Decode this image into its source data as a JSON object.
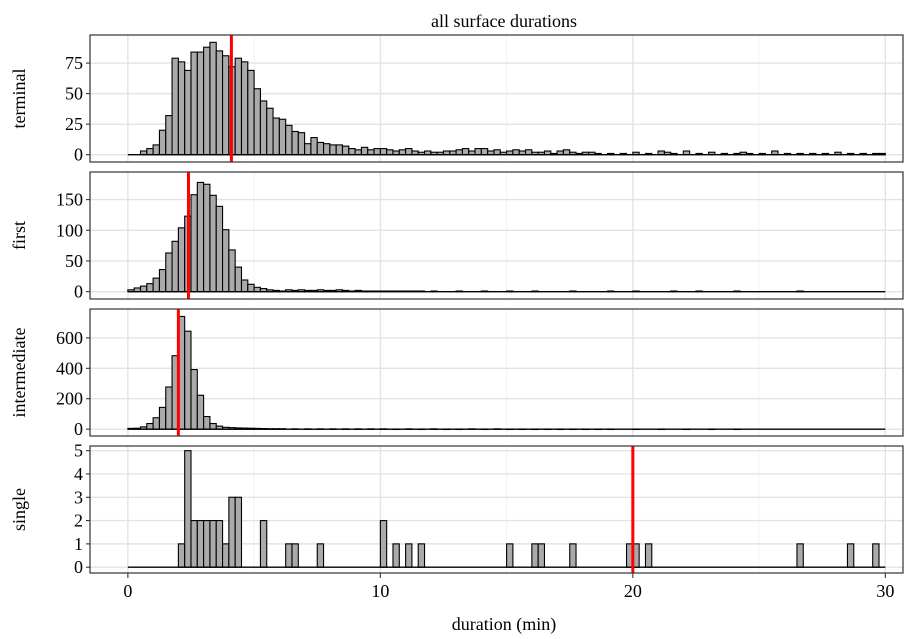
{
  "chart_data": {
    "type": "bar",
    "title": "all surface durations",
    "xlabel": "duration (min)",
    "xlim": [
      -1.5,
      30.7
    ],
    "x_ticks": [
      0,
      10,
      20,
      30
    ],
    "bin_width": 0.25,
    "grid": true,
    "marker_color": "#ff0000",
    "bar_fill": "#aaaaaa",
    "panels": [
      {
        "name": "terminal",
        "ylim": [
          -6,
          98
        ],
        "y_ticks": [
          0,
          25,
          50,
          75
        ],
        "marker": 4.1,
        "bins": [
          [
            0.5,
            3
          ],
          [
            0.75,
            5
          ],
          [
            1.0,
            8
          ],
          [
            1.25,
            20
          ],
          [
            1.5,
            32
          ],
          [
            1.75,
            79
          ],
          [
            2.0,
            76
          ],
          [
            2.25,
            69
          ],
          [
            2.5,
            84
          ],
          [
            2.75,
            84
          ],
          [
            3.0,
            88
          ],
          [
            3.25,
            92
          ],
          [
            3.5,
            85
          ],
          [
            3.75,
            81
          ],
          [
            4.0,
            72
          ],
          [
            4.25,
            79
          ],
          [
            4.5,
            76
          ],
          [
            4.75,
            69
          ],
          [
            5.0,
            54
          ],
          [
            5.25,
            44
          ],
          [
            5.5,
            38
          ],
          [
            5.75,
            30
          ],
          [
            6.0,
            29
          ],
          [
            6.25,
            24
          ],
          [
            6.5,
            19
          ],
          [
            6.75,
            18
          ],
          [
            7.0,
            9
          ],
          [
            7.25,
            14
          ],
          [
            7.5,
            10
          ],
          [
            7.75,
            9
          ],
          [
            8.0,
            8
          ],
          [
            8.25,
            8
          ],
          [
            8.5,
            7
          ],
          [
            8.75,
            5
          ],
          [
            9.0,
            4
          ],
          [
            9.25,
            6
          ],
          [
            9.5,
            4
          ],
          [
            9.75,
            5
          ],
          [
            10.0,
            5
          ],
          [
            10.25,
            4
          ],
          [
            10.5,
            3
          ],
          [
            10.75,
            4
          ],
          [
            11.0,
            5
          ],
          [
            11.25,
            3
          ],
          [
            11.5,
            2
          ],
          [
            11.75,
            3
          ],
          [
            12.0,
            2
          ],
          [
            12.25,
            2
          ],
          [
            12.5,
            3
          ],
          [
            12.75,
            3
          ],
          [
            13.0,
            4
          ],
          [
            13.25,
            5
          ],
          [
            13.5,
            3
          ],
          [
            13.75,
            5
          ],
          [
            14.0,
            5
          ],
          [
            14.25,
            3
          ],
          [
            14.5,
            4
          ],
          [
            14.75,
            2
          ],
          [
            15.0,
            3
          ],
          [
            15.25,
            4
          ],
          [
            15.5,
            3
          ],
          [
            15.75,
            4
          ],
          [
            16.0,
            2
          ],
          [
            16.25,
            2
          ],
          [
            16.5,
            3
          ],
          [
            16.75,
            1
          ],
          [
            17.0,
            3
          ],
          [
            17.25,
            4
          ],
          [
            17.5,
            2
          ],
          [
            17.75,
            1
          ],
          [
            18.0,
            2
          ],
          [
            18.25,
            2
          ],
          [
            18.5,
            1
          ],
          [
            19.0,
            1
          ],
          [
            19.5,
            1
          ],
          [
            20.0,
            2
          ],
          [
            20.5,
            1
          ],
          [
            21.0,
            3
          ],
          [
            21.25,
            2
          ],
          [
            21.5,
            1
          ],
          [
            22.0,
            3
          ],
          [
            22.5,
            1
          ],
          [
            23.0,
            2
          ],
          [
            23.5,
            1
          ],
          [
            24.0,
            1
          ],
          [
            24.25,
            2
          ],
          [
            24.5,
            1
          ],
          [
            25.0,
            1
          ],
          [
            25.5,
            3
          ],
          [
            26.0,
            1
          ],
          [
            26.5,
            1
          ],
          [
            27.0,
            1
          ],
          [
            27.5,
            1
          ],
          [
            28.0,
            2
          ],
          [
            28.5,
            1
          ],
          [
            29.0,
            1
          ],
          [
            29.5,
            1
          ],
          [
            29.75,
            1
          ]
        ]
      },
      {
        "name": "first",
        "ylim": [
          -12,
          195
        ],
        "y_ticks": [
          0,
          50,
          100,
          150
        ],
        "marker": 2.4,
        "bins": [
          [
            0.0,
            3
          ],
          [
            0.25,
            6
          ],
          [
            0.5,
            9
          ],
          [
            0.75,
            13
          ],
          [
            1.0,
            22
          ],
          [
            1.25,
            36
          ],
          [
            1.5,
            63
          ],
          [
            1.75,
            82
          ],
          [
            2.0,
            104
          ],
          [
            2.25,
            123
          ],
          [
            2.5,
            158
          ],
          [
            2.75,
            178
          ],
          [
            3.0,
            175
          ],
          [
            3.25,
            157
          ],
          [
            3.5,
            139
          ],
          [
            3.75,
            101
          ],
          [
            4.0,
            68
          ],
          [
            4.25,
            40
          ],
          [
            4.5,
            19
          ],
          [
            4.75,
            12
          ],
          [
            5.0,
            7
          ],
          [
            5.25,
            5
          ],
          [
            5.5,
            3
          ],
          [
            5.75,
            2
          ],
          [
            6.0,
            1
          ],
          [
            6.25,
            3
          ],
          [
            6.5,
            2
          ],
          [
            6.75,
            3
          ],
          [
            7.0,
            2
          ],
          [
            7.25,
            2
          ],
          [
            7.5,
            3
          ],
          [
            7.75,
            2
          ],
          [
            8.0,
            2
          ],
          [
            8.25,
            3
          ],
          [
            8.5,
            2
          ],
          [
            8.75,
            1
          ],
          [
            9.0,
            2
          ],
          [
            9.25,
            1
          ],
          [
            9.5,
            1
          ],
          [
            9.75,
            1
          ],
          [
            10.0,
            1
          ],
          [
            10.25,
            1
          ],
          [
            10.5,
            1
          ],
          [
            10.75,
            1
          ],
          [
            11.0,
            1
          ],
          [
            11.25,
            1
          ],
          [
            11.5,
            1
          ],
          [
            12.0,
            1
          ],
          [
            13.0,
            1
          ],
          [
            14.0,
            1
          ],
          [
            15.0,
            1
          ],
          [
            16.0,
            1
          ],
          [
            17.5,
            1
          ],
          [
            19.0,
            1
          ],
          [
            20.0,
            1
          ],
          [
            21.5,
            1
          ],
          [
            22.5,
            1
          ],
          [
            24.0,
            1
          ],
          [
            26.5,
            1
          ]
        ]
      },
      {
        "name": "intermediate",
        "ylim": [
          -45,
          790
        ],
        "y_ticks": [
          0,
          200,
          400,
          600
        ],
        "marker": 2.0,
        "bins": [
          [
            0.0,
            5
          ],
          [
            0.25,
            6
          ],
          [
            0.5,
            15
          ],
          [
            0.75,
            37
          ],
          [
            1.0,
            75
          ],
          [
            1.25,
            143
          ],
          [
            1.5,
            277
          ],
          [
            1.75,
            483
          ],
          [
            2.0,
            741
          ],
          [
            2.25,
            644
          ],
          [
            2.5,
            392
          ],
          [
            2.75,
            223
          ],
          [
            3.0,
            83
          ],
          [
            3.25,
            37
          ],
          [
            3.5,
            20
          ],
          [
            3.75,
            12
          ],
          [
            4.0,
            10
          ],
          [
            4.25,
            8
          ],
          [
            4.5,
            7
          ],
          [
            4.75,
            6
          ],
          [
            5.0,
            5
          ],
          [
            5.25,
            4
          ],
          [
            5.5,
            3
          ],
          [
            5.75,
            3
          ],
          [
            6.0,
            3
          ],
          [
            6.5,
            2
          ],
          [
            7.0,
            2
          ],
          [
            7.5,
            2
          ],
          [
            8.0,
            2
          ],
          [
            8.5,
            2
          ],
          [
            9.0,
            2
          ],
          [
            9.5,
            2
          ],
          [
            10.0,
            2
          ],
          [
            10.5,
            1
          ],
          [
            11.0,
            2
          ],
          [
            11.5,
            1
          ],
          [
            12.0,
            2
          ],
          [
            12.5,
            1
          ],
          [
            13.0,
            1
          ],
          [
            13.5,
            2
          ],
          [
            14.0,
            1
          ],
          [
            14.5,
            2
          ],
          [
            15.0,
            1
          ],
          [
            15.5,
            1
          ],
          [
            16.0,
            1
          ],
          [
            16.5,
            1
          ],
          [
            17.0,
            1
          ],
          [
            17.5,
            1
          ],
          [
            18.0,
            1
          ],
          [
            18.5,
            1
          ],
          [
            19.0,
            1
          ],
          [
            20.0,
            1
          ],
          [
            21.0,
            1
          ],
          [
            22.0,
            1
          ],
          [
            23.0,
            1
          ],
          [
            24.0,
            1
          ]
        ]
      },
      {
        "name": "single",
        "ylim": [
          -0.25,
          5.2
        ],
        "y_ticks": [
          0,
          1,
          2,
          3,
          4,
          5
        ],
        "marker": 20.0,
        "bins": [
          [
            2.0,
            1
          ],
          [
            2.25,
            5
          ],
          [
            2.5,
            2
          ],
          [
            2.75,
            2
          ],
          [
            3.0,
            2
          ],
          [
            3.25,
            2
          ],
          [
            3.5,
            2
          ],
          [
            3.75,
            1
          ],
          [
            4.0,
            3
          ],
          [
            4.25,
            3
          ],
          [
            5.25,
            2
          ],
          [
            6.25,
            1
          ],
          [
            6.5,
            1
          ],
          [
            7.5,
            1
          ],
          [
            10.0,
            2
          ],
          [
            10.5,
            1
          ],
          [
            11.0,
            1
          ],
          [
            11.5,
            1
          ],
          [
            15.0,
            1
          ],
          [
            16.0,
            1
          ],
          [
            16.25,
            1
          ],
          [
            17.5,
            1
          ],
          [
            19.75,
            1
          ],
          [
            20.0,
            1
          ],
          [
            20.5,
            1
          ],
          [
            26.5,
            1
          ],
          [
            28.5,
            1
          ],
          [
            29.5,
            1
          ]
        ]
      }
    ]
  }
}
